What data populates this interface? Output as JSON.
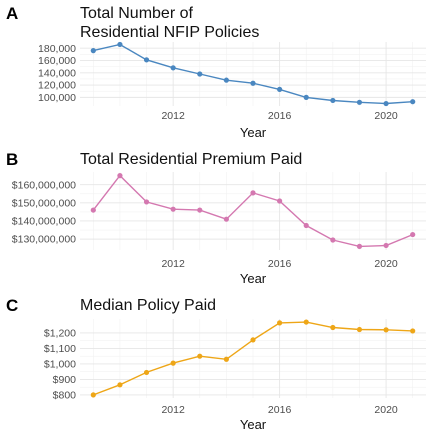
{
  "chart_data": [
    {
      "type": "line",
      "panel_letter": "A",
      "title": [
        "Total Number of",
        "Residential NFIP Policies"
      ],
      "xlabel": "Year",
      "ylabel": "",
      "x": [
        2009,
        2010,
        2011,
        2012,
        2013,
        2014,
        2015,
        2016,
        2017,
        2018,
        2019,
        2020,
        2021
      ],
      "values": [
        176000,
        186000,
        161000,
        148000,
        138000,
        128000,
        123000,
        113000,
        100000,
        95000,
        92000,
        90000,
        93000
      ],
      "xlim": [
        2008.5,
        2021.5
      ],
      "ylim": [
        86000,
        190000
      ],
      "x_ticks": [
        2012,
        2016,
        2020
      ],
      "y_ticks": [
        100000,
        120000,
        140000,
        160000,
        180000
      ],
      "y_tick_labels": [
        "100,000",
        "120,000",
        "140,000",
        "160,000",
        "180,000"
      ],
      "color": "#4a87c0",
      "grid": true,
      "legend": "none"
    },
    {
      "type": "line",
      "panel_letter": "B",
      "title": [
        "Total Residential Premium Paid"
      ],
      "xlabel": "Year",
      "ylabel": "",
      "x": [
        2009,
        2010,
        2011,
        2012,
        2013,
        2014,
        2015,
        2016,
        2017,
        2018,
        2019,
        2020,
        2021
      ],
      "values": [
        146000000,
        165000000,
        150500000,
        146500000,
        146000000,
        141000000,
        155500000,
        151000000,
        137500000,
        129500000,
        126000000,
        126500000,
        132500000
      ],
      "xlim": [
        2008.5,
        2021.5
      ],
      "ylim": [
        124000000,
        167000000
      ],
      "x_ticks": [
        2012,
        2016,
        2020
      ],
      "y_ticks": [
        130000000,
        140000000,
        150000000,
        160000000
      ],
      "y_tick_labels": [
        "$130,000,000",
        "$140,000,000",
        "$150,000,000",
        "$160,000,000"
      ],
      "color": "#d478b0",
      "grid": true,
      "legend": "none"
    },
    {
      "type": "line",
      "panel_letter": "C",
      "title": [
        "Median Policy Paid"
      ],
      "xlabel": "Year",
      "ylabel": "",
      "x": [
        2009,
        2010,
        2011,
        2012,
        2013,
        2014,
        2015,
        2016,
        2017,
        2018,
        2019,
        2020,
        2021
      ],
      "values": [
        800,
        865,
        945,
        1005,
        1050,
        1030,
        1155,
        1265,
        1270,
        1235,
        1222,
        1220,
        1213
      ],
      "xlim": [
        2008.5,
        2021.5
      ],
      "ylim": [
        780,
        1290
      ],
      "x_ticks": [
        2012,
        2016,
        2020
      ],
      "y_ticks": [
        800,
        900,
        1000,
        1100,
        1200
      ],
      "y_tick_labels": [
        "$800",
        "$900",
        "$1,000",
        "$1,100",
        "$1,200"
      ],
      "color": "#eea617",
      "grid": true,
      "legend": "none"
    }
  ]
}
